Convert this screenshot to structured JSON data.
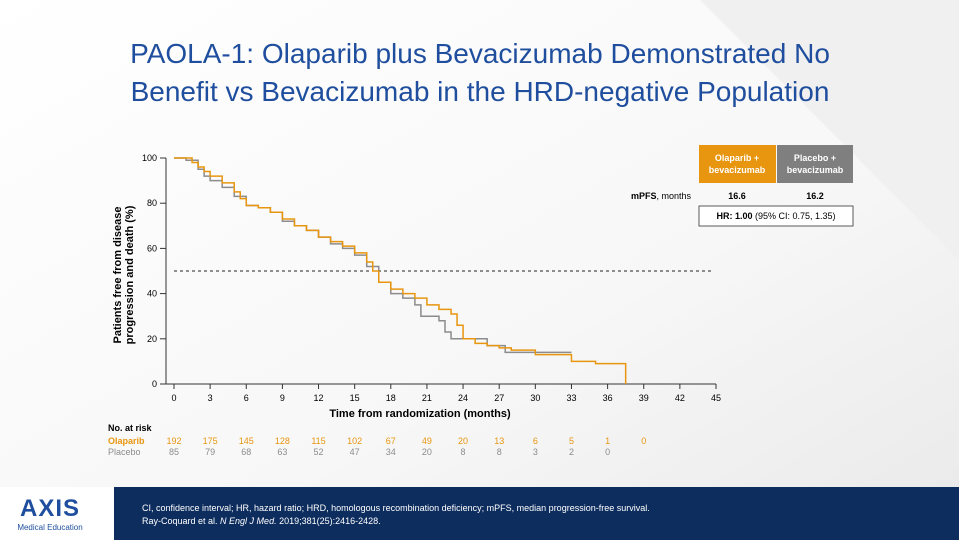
{
  "title": [
    "PAOLA-1: Olaparib plus Bevacizumab Demonstrated No",
    "Benefit vs Bevacizumab in the HRD-negative Population"
  ],
  "chart_data": {
    "type": "line",
    "step": true,
    "ylabel": [
      "Patients free from disease",
      "progression and death (%)"
    ],
    "xlabel": "Time from randomization (months)",
    "xlim": [
      0,
      45
    ],
    "xticks": [
      0,
      3,
      6,
      9,
      12,
      15,
      18,
      21,
      24,
      27,
      30,
      33,
      36,
      39,
      42,
      45
    ],
    "ylim": [
      0,
      100
    ],
    "yticks": [
      0,
      20,
      40,
      60,
      80,
      100
    ],
    "hline": 50,
    "at_risk_title": "No. at risk",
    "series": [
      {
        "name": "Olaparib",
        "color": "#e8960f",
        "x": [
          0,
          1.5,
          2,
          2.5,
          3,
          4,
          5,
          5.5,
          6,
          7,
          8,
          9,
          10,
          11,
          12,
          13,
          14,
          15,
          16,
          16.5,
          17,
          18,
          19,
          20,
          21,
          22,
          23,
          23.5,
          24,
          25,
          26,
          27,
          28,
          30,
          33,
          35,
          37.5
        ],
        "values": [
          100,
          98,
          96,
          94,
          92,
          89,
          85,
          82,
          79,
          78,
          76,
          73,
          70,
          68,
          65,
          63,
          61,
          58,
          54,
          50,
          45,
          42,
          40,
          38,
          35,
          33,
          31,
          26,
          20,
          18,
          17,
          16,
          15,
          13,
          10,
          9,
          0
        ],
        "at_risk": [
          192,
          175,
          145,
          128,
          115,
          102,
          67,
          49,
          20,
          13,
          6,
          5,
          1,
          0
        ]
      },
      {
        "name": "Placebo",
        "color": "#8c8c8c",
        "x": [
          0,
          1,
          2,
          2.5,
          3,
          4,
          5,
          6,
          7,
          8,
          9,
          10,
          11,
          12,
          13,
          14,
          15,
          16,
          17,
          18,
          19,
          20,
          20.5,
          22,
          22.5,
          23,
          26,
          27.5,
          33
        ],
        "values": [
          100,
          99,
          95,
          92,
          90,
          87,
          83,
          79,
          78,
          76,
          72,
          70,
          68,
          65,
          62,
          60,
          57,
          52,
          45,
          40,
          38,
          35,
          30,
          28,
          23,
          20,
          17,
          14,
          14
        ],
        "at_risk": [
          85,
          79,
          68,
          63,
          52,
          47,
          34,
          20,
          8,
          8,
          3,
          2,
          0
        ]
      }
    ]
  },
  "hr_table": {
    "headers": [
      [
        "Olaparib +",
        "bevacizumab"
      ],
      [
        "Placebo +",
        "bevacizumab"
      ]
    ],
    "row_label_bold": "mPFS",
    "row_label_rest": ", months",
    "values": [
      "16.6",
      "16.2"
    ],
    "hr_bold": "HR: 1.00",
    "hr_rest": " (95% CI: 0.75, 1.35)"
  },
  "footer": {
    "line1": "CI, confidence interval; HR, hazard ratio; HRD, homologous recombination deficiency; mPFS, median progression-free survival.",
    "line2_a": "Ray-Coquard et al. ",
    "line2_italic": "N Engl J Med.",
    "line2_b": " 2019;381(25):2416-2428."
  },
  "logo": {
    "mark": "AXIS",
    "sub": "Medical Education"
  }
}
